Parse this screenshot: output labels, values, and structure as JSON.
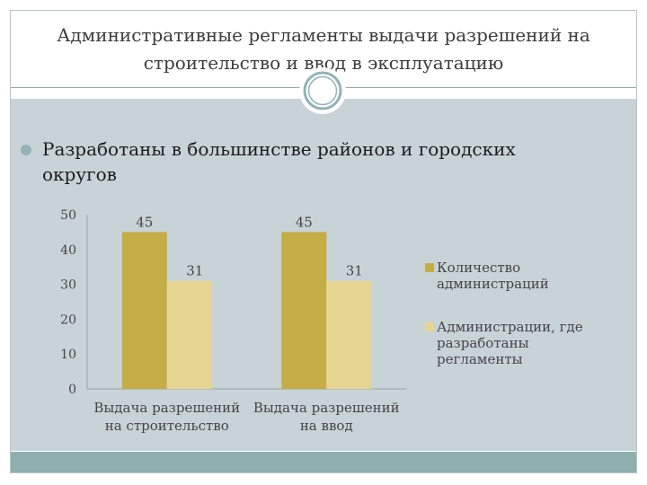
{
  "slide": {
    "title": "Административные регламенты выдачи разрешений на строительство и ввод в эксплуатацию",
    "bullet": "Разработаны в большинстве районов и городских округов"
  },
  "colors": {
    "series1": "#c4ad44",
    "series2": "#e6d592",
    "band": "#c8d3d8",
    "accent": "#8faeae"
  },
  "chart_data": {
    "type": "bar",
    "categories": [
      "Выдача разрешений на строительство",
      "Выдача разрешений на ввод"
    ],
    "category_lines": [
      [
        "Выдача разрешений",
        "на строительство"
      ],
      [
        "Выдача разрешений",
        "на ввод"
      ]
    ],
    "series": [
      {
        "name": "Количество администраций",
        "name_lines": [
          "Количество",
          "администраций"
        ],
        "values": [
          45,
          45
        ]
      },
      {
        "name": "Администрации, где разработаны регламенты",
        "name_lines": [
          "Администрации, где",
          "разработаны",
          "регламенты"
        ],
        "values": [
          31,
          31
        ]
      }
    ],
    "ylim": [
      0,
      50
    ],
    "yticks": [
      0,
      10,
      20,
      30,
      40,
      50
    ],
    "grid": false,
    "legend": "right",
    "data_labels": true
  }
}
